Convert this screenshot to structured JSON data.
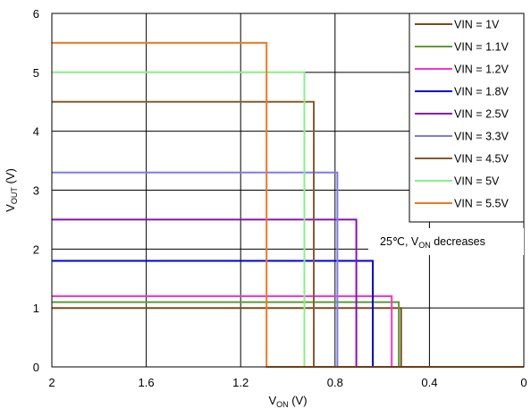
{
  "chart_data": {
    "type": "line",
    "xlabel": {
      "main": "V",
      "sub": "ON",
      "unit": " (V)"
    },
    "ylabel": {
      "main": "V",
      "sub": "OUT",
      "unit": " (V)"
    },
    "xlim": [
      2,
      0
    ],
    "ylim": [
      0,
      6
    ],
    "x_reversed": true,
    "x_ticks": [
      "2",
      "1.6",
      "1.2",
      "0.8",
      "0.4",
      "0"
    ],
    "x_tick_values": [
      2,
      1.6,
      1.2,
      0.8,
      0.4,
      0
    ],
    "y_ticks": [
      "0",
      "1",
      "2",
      "3",
      "4",
      "5",
      "6"
    ],
    "y_tick_values": [
      0,
      1,
      2,
      3,
      4,
      5,
      6
    ],
    "grid": true,
    "legend_position": "top-right",
    "annotation": {
      "prefix": "25℃, V",
      "sub": "ON",
      "suffix": " decreases"
    },
    "series": [
      {
        "name": "VIN = 1V",
        "color": "#7a4b1c",
        "x": [
          2,
          0.52,
          0.52,
          0
        ],
        "y": [
          1.0,
          1.0,
          0,
          0
        ]
      },
      {
        "name": "VIN = 1.1V",
        "color": "#5a9e2f",
        "x": [
          2,
          0.53,
          0.53,
          0
        ],
        "y": [
          1.1,
          1.1,
          0,
          0
        ]
      },
      {
        "name": "VIN = 1.2V",
        "color": "#ff33cc",
        "x": [
          2,
          0.56,
          0.56,
          0
        ],
        "y": [
          1.2,
          1.2,
          0,
          0
        ]
      },
      {
        "name": "VIN = 1.8V",
        "color": "#0000dd",
        "x": [
          2,
          0.64,
          0.64,
          0
        ],
        "y": [
          1.8,
          1.8,
          0,
          0
        ]
      },
      {
        "name": "VIN = 2.5V",
        "color": "#8b10b8",
        "x": [
          2,
          0.71,
          0.71,
          0
        ],
        "y": [
          2.5,
          2.5,
          0,
          0
        ]
      },
      {
        "name": "VIN = 3.3V",
        "color": "#7b7bf0",
        "x": [
          2,
          0.79,
          0.79,
          0
        ],
        "y": [
          3.3,
          3.3,
          0,
          0
        ]
      },
      {
        "name": "VIN = 4.5V",
        "color": "#8b5a2b",
        "x": [
          2,
          0.89,
          0.89,
          0
        ],
        "y": [
          4.5,
          4.5,
          0,
          0
        ]
      },
      {
        "name": "VIN = 5V",
        "color": "#88f088",
        "x": [
          2,
          0.93,
          0.93,
          0
        ],
        "y": [
          5.0,
          5.0,
          0,
          0
        ]
      },
      {
        "name": "VIN = 5.5V",
        "color": "#f07820",
        "x": [
          2,
          1.09,
          1.09,
          0
        ],
        "y": [
          5.5,
          5.5,
          0,
          0
        ]
      }
    ]
  }
}
